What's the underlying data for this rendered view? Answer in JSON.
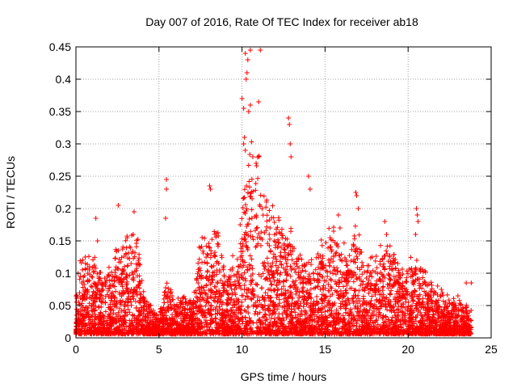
{
  "chart_data": {
    "type": "scatter",
    "title": "Day 007 of 2016, Rate Of TEC Index for receiver ab18",
    "xlabel": "GPS time / hours",
    "ylabel": "ROTI / TECUs",
    "xlim": [
      0,
      25
    ],
    "ylim": [
      0,
      0.45
    ],
    "xticks": [
      "0",
      "5",
      "10",
      "15",
      "20",
      "25"
    ],
    "yticks": [
      "0",
      "0.05",
      "0.1",
      "0.15",
      "0.2",
      "0.25",
      "0.3",
      "0.35",
      "0.4",
      "0.45"
    ],
    "grid": true,
    "marker": "+",
    "series_color": "#ff0000",
    "envelope": {
      "description": "approximate upper envelope of the dense point cloud (hour, ROTI)",
      "x": [
        0,
        0.3,
        1.2,
        2.0,
        2.6,
        3.5,
        4.2,
        5.0,
        5.4,
        6.0,
        7.0,
        7.5,
        8.3,
        9.0,
        9.7,
        10.0,
        10.5,
        11.0,
        11.5,
        12.0,
        12.8,
        13.5,
        14.3,
        15.0,
        15.5,
        16.0,
        16.8,
        17.5,
        18.0,
        18.8,
        19.5,
        20.5,
        21.0,
        22.0,
        23.0,
        23.8
      ],
      "y": [
        0.06,
        0.12,
        0.11,
        0.1,
        0.13,
        0.17,
        0.05,
        0.03,
        0.08,
        0.05,
        0.06,
        0.13,
        0.17,
        0.1,
        0.12,
        0.2,
        0.27,
        0.26,
        0.2,
        0.18,
        0.16,
        0.12,
        0.1,
        0.15,
        0.17,
        0.12,
        0.16,
        0.1,
        0.12,
        0.14,
        0.1,
        0.11,
        0.09,
        0.06,
        0.05,
        0.04
      ]
    },
    "points": [
      [
        1.2,
        0.185
      ],
      [
        1.3,
        0.15
      ],
      [
        2.55,
        0.205
      ],
      [
        3.5,
        0.195
      ],
      [
        3.45,
        0.16
      ],
      [
        5.45,
        0.245
      ],
      [
        5.45,
        0.23
      ],
      [
        5.4,
        0.185
      ],
      [
        8.05,
        0.235
      ],
      [
        8.1,
        0.23
      ],
      [
        10.0,
        0.37
      ],
      [
        10.1,
        0.355
      ],
      [
        10.2,
        0.44
      ],
      [
        10.35,
        0.43
      ],
      [
        10.5,
        0.445
      ],
      [
        10.3,
        0.41
      ],
      [
        10.25,
        0.4
      ],
      [
        10.15,
        0.31
      ],
      [
        10.2,
        0.29
      ],
      [
        10.1,
        0.3
      ],
      [
        10.4,
        0.35
      ],
      [
        10.5,
        0.36
      ],
      [
        10.65,
        0.28
      ],
      [
        10.85,
        0.27
      ],
      [
        11.0,
        0.365
      ],
      [
        11.1,
        0.445
      ],
      [
        12.8,
        0.34
      ],
      [
        12.85,
        0.33
      ],
      [
        12.9,
        0.3
      ],
      [
        12.95,
        0.28
      ],
      [
        14.0,
        0.25
      ],
      [
        14.1,
        0.23
      ],
      [
        15.8,
        0.19
      ],
      [
        15.9,
        0.17
      ],
      [
        16.85,
        0.225
      ],
      [
        16.9,
        0.22
      ],
      [
        17.0,
        0.2
      ],
      [
        18.6,
        0.18
      ],
      [
        18.7,
        0.16
      ],
      [
        20.5,
        0.2
      ],
      [
        20.55,
        0.19
      ],
      [
        20.6,
        0.18
      ],
      [
        20.45,
        0.16
      ],
      [
        22.0,
        0.075
      ],
      [
        23.0,
        0.065
      ],
      [
        23.5,
        0.085
      ],
      [
        23.8,
        0.085
      ]
    ]
  }
}
